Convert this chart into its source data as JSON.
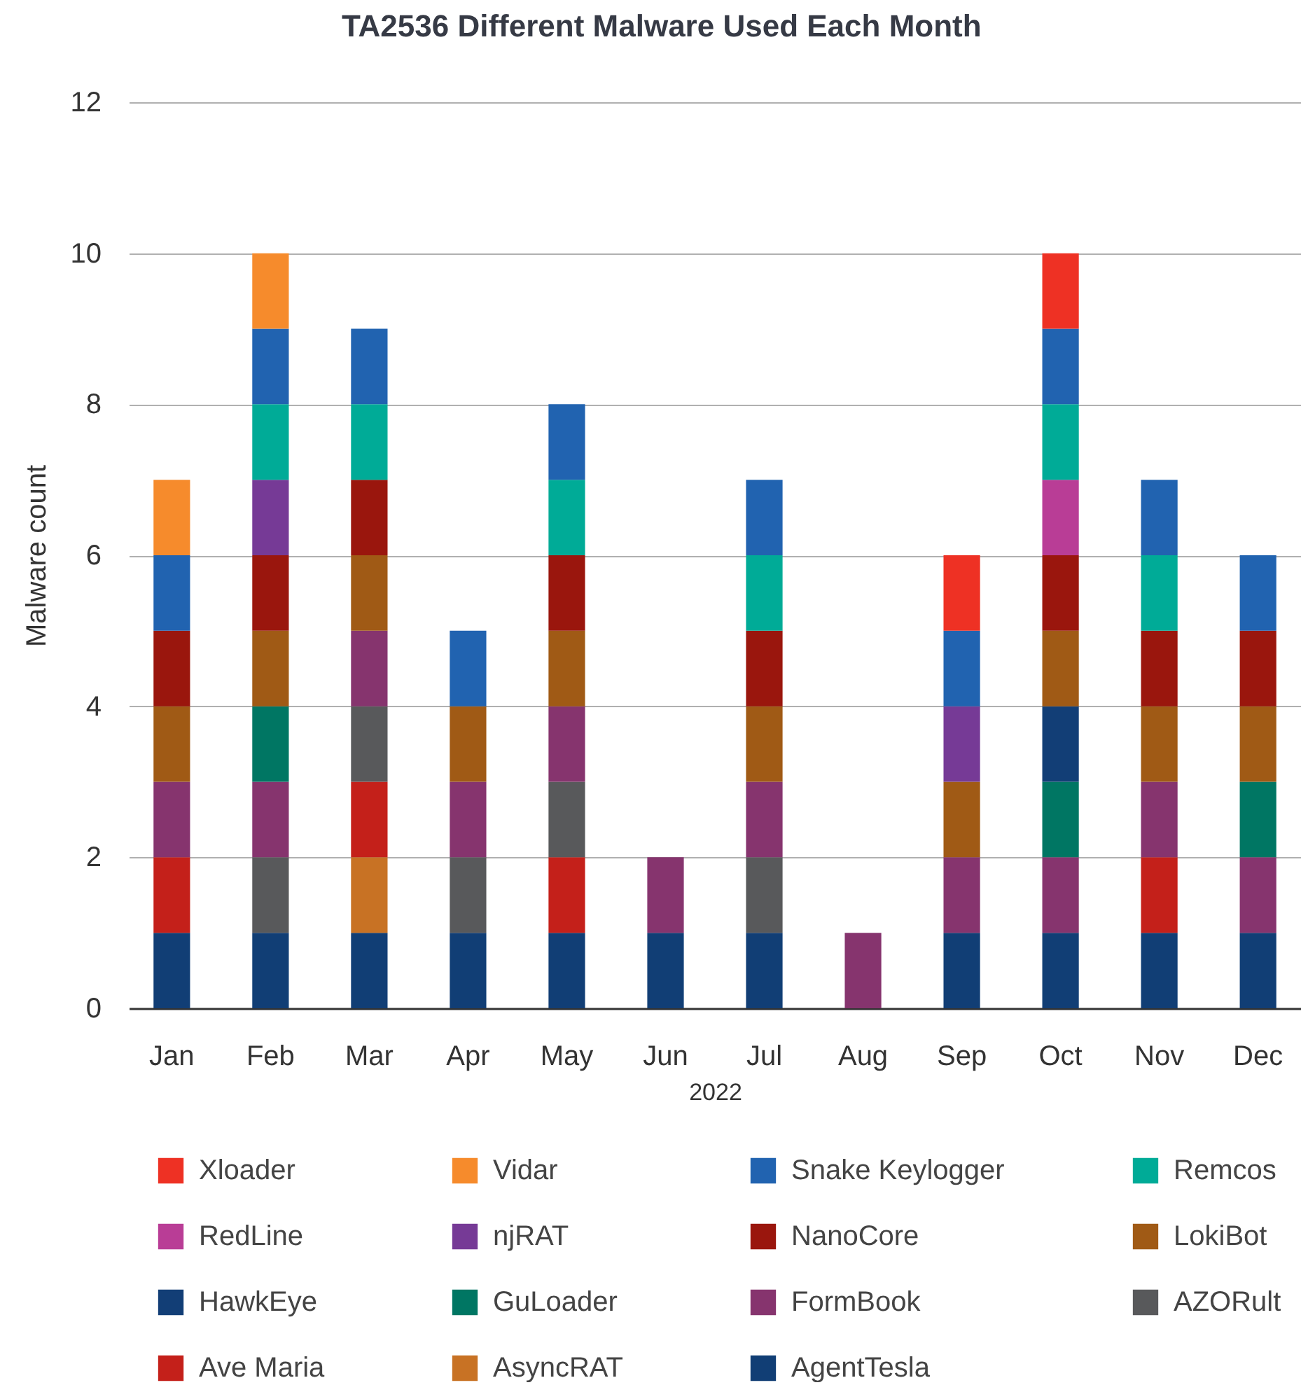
{
  "chart_data": {
    "type": "bar",
    "title": "TA2536 Different Malware Used Each Month",
    "xlabel": "2022",
    "ylabel": "Malware count",
    "categories": [
      "Jan",
      "Feb",
      "Mar",
      "Apr",
      "May",
      "Jun",
      "Jul",
      "Aug",
      "Sep",
      "Oct",
      "Nov",
      "Dec"
    ],
    "stacked": true,
    "ylim": [
      0,
      12
    ],
    "yticks": [
      0,
      2,
      4,
      6,
      8,
      10,
      12
    ],
    "grid": "y",
    "legend": "bottom",
    "series": [
      {
        "name": "AgentTesla",
        "color": "#113e75",
        "values": [
          1,
          1,
          1,
          1,
          1,
          1,
          1,
          null,
          1,
          1,
          1,
          1
        ]
      },
      {
        "name": "AsyncRAT",
        "color": "#c87224",
        "values": [
          null,
          null,
          1,
          null,
          null,
          null,
          null,
          null,
          null,
          null,
          null,
          null
        ]
      },
      {
        "name": "Ave Maria",
        "color": "#c4201a",
        "values": [
          1,
          null,
          1,
          null,
          1,
          null,
          null,
          null,
          null,
          null,
          1,
          null
        ]
      },
      {
        "name": "AZORult",
        "color": "#58595b",
        "values": [
          null,
          1,
          1,
          1,
          1,
          null,
          1,
          null,
          null,
          null,
          null,
          null
        ]
      },
      {
        "name": "FormBook",
        "color": "#86346e",
        "values": [
          1,
          1,
          1,
          1,
          1,
          1,
          1,
          1,
          1,
          1,
          1,
          1
        ]
      },
      {
        "name": "GuLoader",
        "color": "#007663",
        "values": [
          null,
          1,
          null,
          null,
          null,
          null,
          null,
          null,
          null,
          1,
          null,
          1
        ]
      },
      {
        "name": "HawkEye",
        "color": "#123e76",
        "values": [
          null,
          null,
          null,
          null,
          null,
          null,
          null,
          null,
          null,
          1,
          null,
          null
        ]
      },
      {
        "name": "LokiBot",
        "color": "#a05a15",
        "values": [
          1,
          1,
          1,
          1,
          1,
          null,
          1,
          null,
          1,
          1,
          1,
          1
        ]
      },
      {
        "name": "NanoCore",
        "color": "#9a160d",
        "values": [
          1,
          1,
          1,
          null,
          1,
          null,
          1,
          null,
          null,
          1,
          1,
          1
        ]
      },
      {
        "name": "njRAT",
        "color": "#763a96",
        "values": [
          null,
          1,
          null,
          null,
          null,
          null,
          null,
          null,
          1,
          null,
          null,
          null
        ]
      },
      {
        "name": "RedLine",
        "color": "#b93d96",
        "values": [
          null,
          null,
          null,
          null,
          null,
          null,
          null,
          null,
          null,
          1,
          null,
          null
        ]
      },
      {
        "name": "Remcos",
        "color": "#00ab97",
        "values": [
          null,
          1,
          1,
          null,
          1,
          null,
          1,
          null,
          null,
          1,
          1,
          null
        ]
      },
      {
        "name": "Snake Keylogger",
        "color": "#2163b0",
        "values": [
          1,
          1,
          1,
          1,
          1,
          null,
          1,
          null,
          1,
          1,
          1,
          1
        ]
      },
      {
        "name": "Vidar",
        "color": "#f68b2c",
        "values": [
          1,
          1,
          null,
          null,
          null,
          null,
          null,
          null,
          null,
          null,
          null,
          null
        ]
      },
      {
        "name": "Xloader",
        "color": "#ee3124",
        "values": [
          null,
          null,
          null,
          null,
          null,
          null,
          null,
          null,
          1,
          1,
          null,
          null
        ]
      }
    ]
  }
}
